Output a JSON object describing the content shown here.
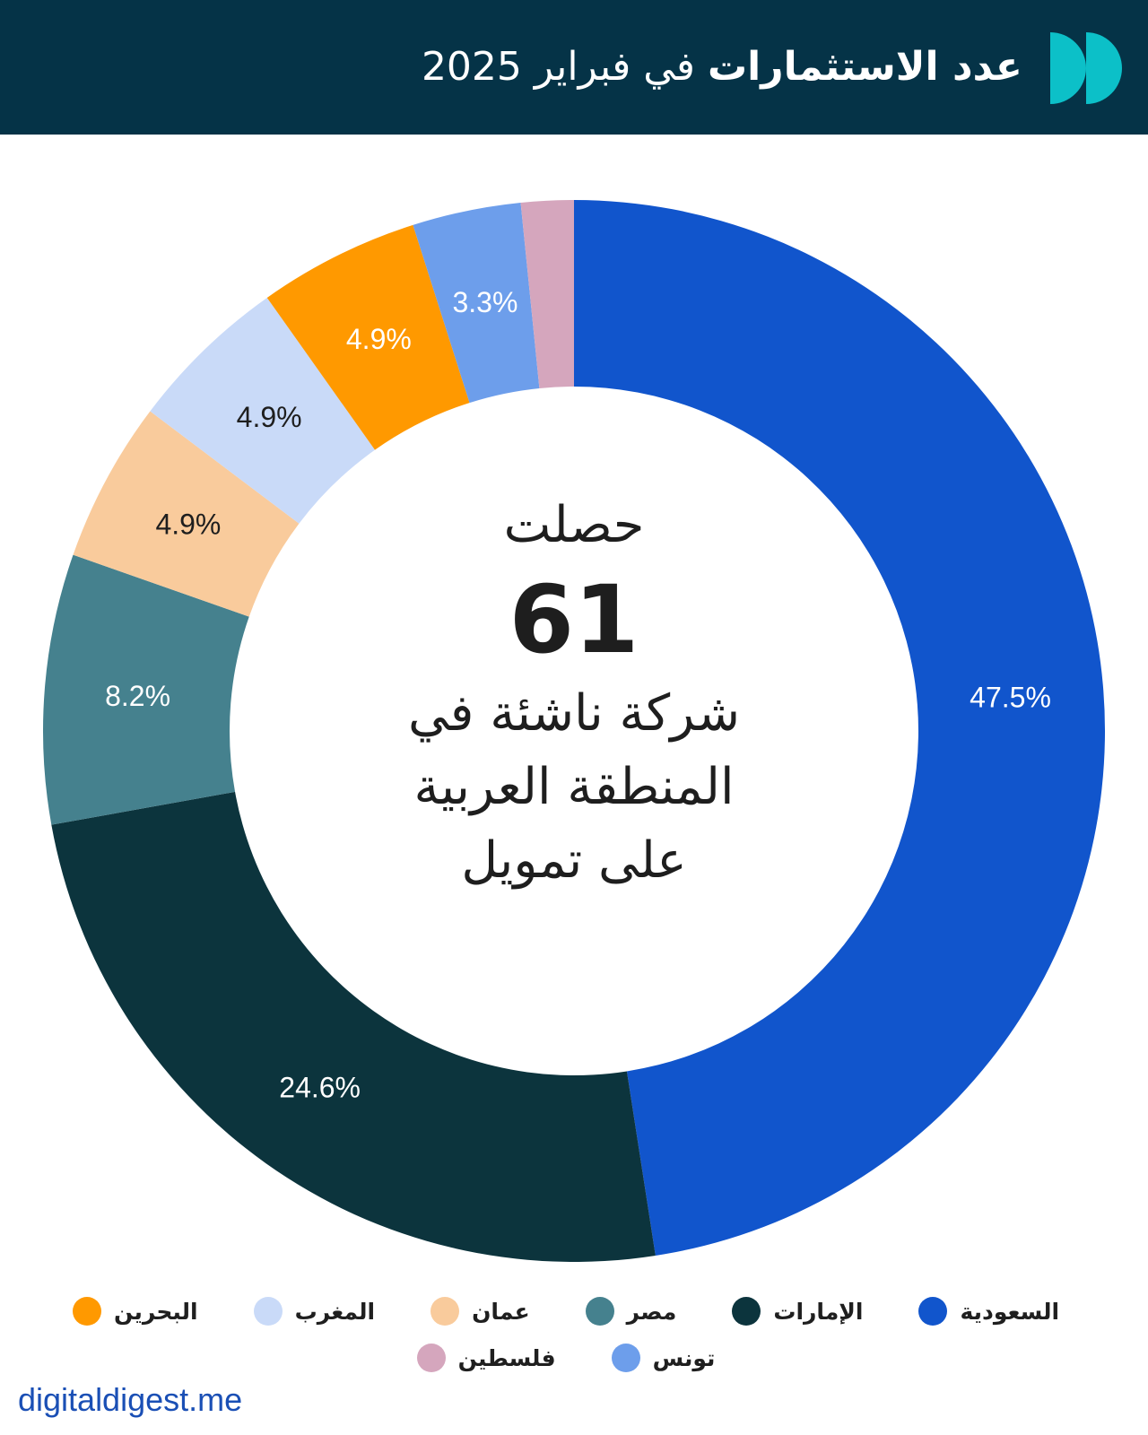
{
  "header": {
    "title_bold": "عدد الاستثمارات",
    "title_rest": "في فبراير 2025",
    "logo_icon": "digital-digest-logo",
    "logo_color": "#0cc0c8"
  },
  "center": {
    "line1": "حصلت",
    "number": "61",
    "line2": "شركة ناشئة في",
    "line3": "المنطقة العربية",
    "line4": "على تمويل"
  },
  "chart_data": {
    "type": "pie",
    "donut": true,
    "categories": [
      "السعودية",
      "الإمارات",
      "مصر",
      "عمان",
      "المغرب",
      "البحرين",
      "تونس",
      "فلسطين"
    ],
    "values": [
      47.5,
      24.6,
      8.2,
      4.9,
      4.9,
      4.9,
      3.3,
      1.6
    ],
    "labels": [
      "47.5%",
      "24.6%",
      "8.2%",
      "4.9%",
      "4.9%",
      "4.9%",
      "3.3%",
      ""
    ],
    "colors": [
      "#1155cc",
      "#0c343d",
      "#45818e",
      "#f9cb9c",
      "#c9daf8",
      "#ff9900",
      "#6d9eeb",
      "#d5a6bd"
    ],
    "label_colors": [
      "#ffffff",
      "#ffffff",
      "#ffffff",
      "#1e1e1e",
      "#1e1e1e",
      "#ffffff",
      "#ffffff",
      "#ffffff"
    ],
    "legend_position": "bottom"
  },
  "source": "digitaldigest.me"
}
